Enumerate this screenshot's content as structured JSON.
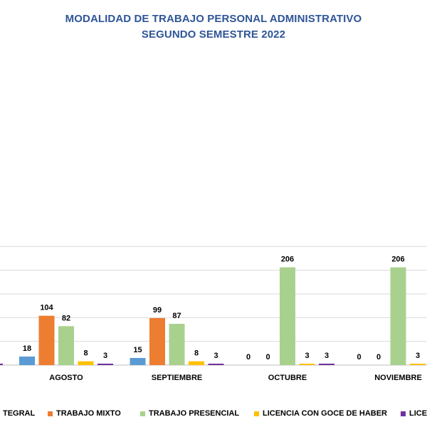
{
  "chart_data": {
    "type": "bar",
    "title": "MODALIDAD DE TRABAJO PERSONAL ADMINISTRATIVO",
    "subtitle": "SEGUNDO SEMESTRE 2022",
    "categories": [
      "AGOSTO",
      "SEPTIEMBRE",
      "OCTUBRE",
      "NOVIEMBRE"
    ],
    "series": [
      {
        "name": "TEGRAL",
        "color": "#5B9BD5",
        "values": [
          18,
          15,
          0,
          0
        ]
      },
      {
        "name": "TRABAJO MIXTO",
        "color": "#ED7D31",
        "values": [
          104,
          99,
          0,
          0
        ]
      },
      {
        "name": "TRABAJO PRESENCIAL",
        "color": "#A9D18E",
        "values": [
          82,
          87,
          206,
          206
        ]
      },
      {
        "name": "LICENCIA CON GOCE DE HABER",
        "color": "#FFC000",
        "values": [
          8,
          8,
          3,
          3
        ]
      },
      {
        "name": "LICEN",
        "color": "#7030A0",
        "values": [
          3,
          3,
          3,
          null
        ]
      }
    ],
    "ylim": [
      0,
      250
    ],
    "grid": true,
    "legend_position": "bottom"
  }
}
